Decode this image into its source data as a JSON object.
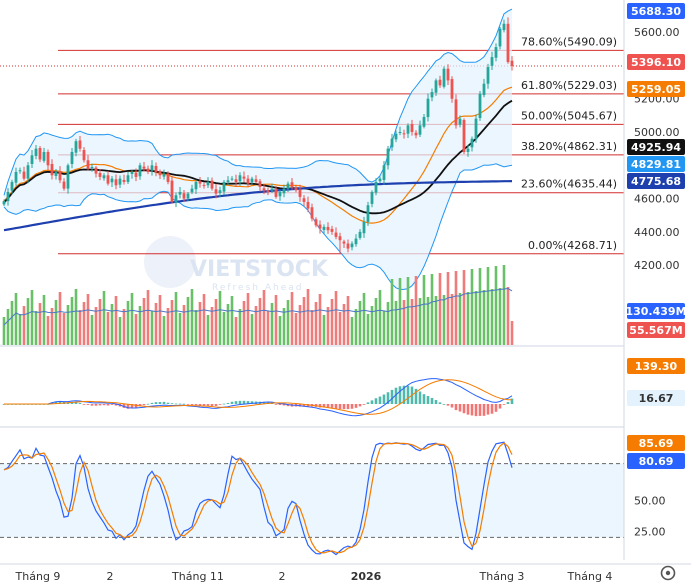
{
  "watermark": {
    "brand": "VIETSTOCK",
    "tagline": "Refresh Ahead"
  },
  "fib_levels": [
    {
      "label": "78.60%(5490.09)",
      "value": 5490.09
    },
    {
      "label": "61.80%(5229.03)",
      "value": 5229.03
    },
    {
      "label": "50.00%(5045.67)",
      "value": 5045.67
    },
    {
      "label": "38.20%(4862.31)",
      "value": 4862.31
    },
    {
      "label": "23.60%(4635.44)",
      "value": 4635.44
    },
    {
      "label": "0.00%(4268.71)",
      "value": 4268.71
    }
  ],
  "price_axis": {
    "ticks": [
      "5600.00",
      "5200.00",
      "5000.00",
      "4600.00",
      "4400.00",
      "4200.00"
    ]
  },
  "price_tags": [
    {
      "text": "5688.30",
      "value": 5688.3,
      "color": "#2962ff"
    },
    {
      "text": "5396.10",
      "value": 5396.1,
      "color": "#ef5350"
    },
    {
      "text": "5259.05",
      "value": 5259.05,
      "color": "#f57c00"
    },
    {
      "text": "4925.94",
      "value": 4925.94,
      "color": "#111111"
    },
    {
      "text": "4829.81",
      "value": 4829.81,
      "color": "#2196f3"
    },
    {
      "text": "4775.68",
      "value": 4775.68,
      "color": "#1e40af"
    }
  ],
  "volume_tags": [
    {
      "text": "130.439M",
      "color": "#2962ff"
    },
    {
      "text": "55.567M",
      "color": "#ef5350"
    }
  ],
  "macd_tags": [
    {
      "text": "139.30",
      "color": "#f57c00"
    },
    {
      "text": "16.67",
      "color": "#e3f2fd",
      "text_color": "#333333"
    }
  ],
  "stoch": {
    "ticks": [
      "50.00",
      "25.00"
    ],
    "tags": [
      {
        "text": "85.69",
        "color": "#f57c00"
      },
      {
        "text": "80.69",
        "color": "#2962ff"
      }
    ],
    "upper": 80,
    "lower": 20
  },
  "time_axis": {
    "labels": [
      "Tháng 9",
      "2",
      "Tháng 11",
      "2",
      "2026",
      "Tháng 3",
      "Tháng 4"
    ]
  },
  "colors": {
    "up": "#26a69a",
    "down": "#ef5350",
    "fib": "#d32f2f",
    "ma20": "#f57c00",
    "ma50": "#111111",
    "ma200": "#1e40af",
    "band": "#2196f3",
    "band_fill": "#e3f2fd"
  },
  "chart_data": {
    "type": "candlestick",
    "period": "daily, Sep 2025 – Mar 2026",
    "close": [
      4585,
      4640,
      4700,
      4760,
      4770,
      4720,
      4800,
      4860,
      4900,
      4835,
      4880,
      4800,
      4740,
      4760,
      4710,
      4660,
      4800,
      4880,
      4945,
      4900,
      4830,
      4780,
      4790,
      4750,
      4730,
      4740,
      4690,
      4720,
      4680,
      4720,
      4700,
      4740,
      4760,
      4730,
      4800,
      4780,
      4760,
      4800,
      4760,
      4740,
      4750,
      4700,
      4580,
      4620,
      4640,
      4600,
      4630,
      4660,
      4700,
      4690,
      4680,
      4700,
      4660,
      4630,
      4650,
      4700,
      4710,
      4720,
      4700,
      4740,
      4720,
      4690,
      4720,
      4700,
      4670,
      4650,
      4640,
      4660,
      4610,
      4640,
      4660,
      4690,
      4670,
      4650,
      4610,
      4580,
      4540,
      4480,
      4440,
      4420,
      4430,
      4410,
      4400,
      4370,
      4350,
      4330,
      4300,
      4330,
      4360,
      4400,
      4460,
      4560,
      4640,
      4700,
      4720,
      4800,
      4900,
      4960,
      4990,
      5000,
      4990,
      5040,
      5000,
      4980,
      5040,
      5090,
      5200,
      5240,
      5310,
      5280,
      5380,
      5310,
      5200,
      5040,
      5080,
      4880,
      4900,
      4960,
      5080,
      5230,
      5290,
      5390,
      5450,
      5510,
      5620,
      5650,
      5420,
      5396.1
    ],
    "sma20_last": 5259.05,
    "sma50_last": 4925.94,
    "sma200_last": 4775.68,
    "bb_lower_last": 4829.81,
    "bb_upper_last": 5688.3,
    "volume_last": 55.567,
    "volume_ma_last": 130.439,
    "volume_unit": "M",
    "macd_last": 139.3,
    "macd_hist_last": 16.67,
    "stoch_k_last": 80.69,
    "stoch_d_last": 85.69
  }
}
